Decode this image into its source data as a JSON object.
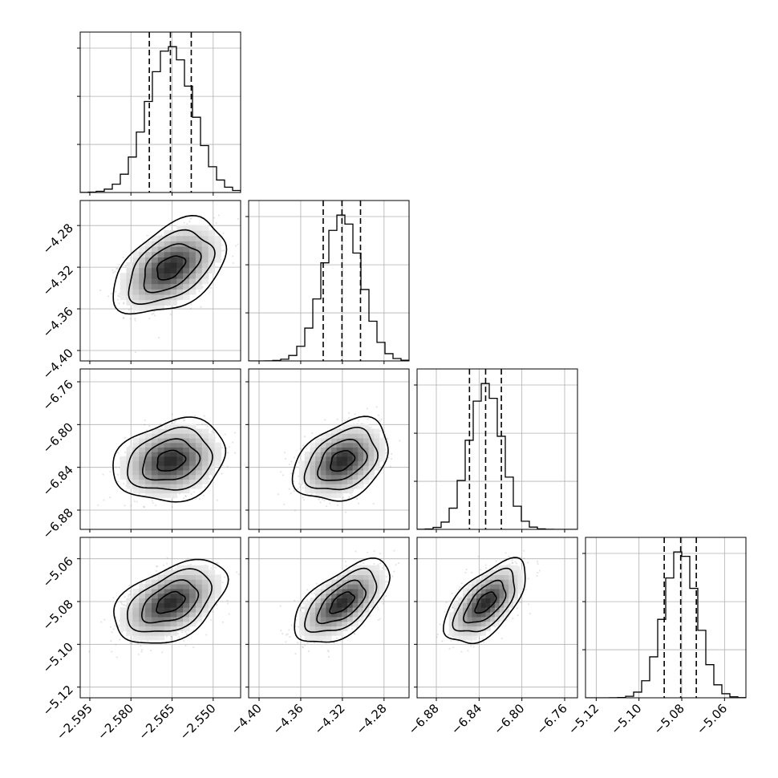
{
  "chart_data": {
    "type": "corner",
    "grid": true,
    "parameters": [
      {
        "mean": -2.5656,
        "sd": 0.0082,
        "range": [
          -2.5985,
          -2.54
        ],
        "ticks": [
          -2.595,
          -2.58,
          -2.565,
          -2.55
        ],
        "tick_labels": [
          "−2.595",
          "−2.580",
          "−2.565",
          "−2.550"
        ],
        "quantiles": [
          -2.5733,
          -2.5656,
          -2.558
        ]
      },
      {
        "mean": -4.3204,
        "sd": 0.0183,
        "range": [
          -4.41,
          -4.256
        ],
        "ticks": [
          -4.4,
          -4.36,
          -4.32,
          -4.28
        ],
        "tick_labels": [
          "−4.40",
          "−4.36",
          "−4.32",
          "−4.28"
        ],
        "quantiles": [
          -4.3384,
          -4.3204,
          -4.3026
        ]
      },
      {
        "mean": -6.8339,
        "sd": 0.0153,
        "range": [
          -6.898,
          -6.748
        ],
        "ticks": [
          -6.88,
          -6.84,
          -6.8,
          -6.76
        ],
        "tick_labels": [
          "−6.88",
          "−6.84",
          "−6.80",
          "−6.76"
        ],
        "quantiles": [
          -6.849,
          -6.8339,
          -6.8192
        ]
      },
      {
        "mean": -5.0805,
        "sd": 0.0078,
        "range": [
          -5.125,
          -5.05
        ],
        "ticks": [
          -5.12,
          -5.1,
          -5.08,
          -5.06
        ],
        "tick_labels": [
          "−5.12",
          "−5.10",
          "−5.08",
          "−5.06"
        ],
        "quantiles": [
          -5.0882,
          -5.0805,
          -5.0732
        ]
      }
    ],
    "correlations": [
      [
        0,
        1,
        0.45
      ],
      [
        0,
        2,
        0.2
      ],
      [
        0,
        3,
        0.45
      ],
      [
        1,
        2,
        0.35
      ],
      [
        1,
        3,
        0.6
      ],
      [
        2,
        3,
        0.6
      ]
    ],
    "contour_levels_sigma": [
      0.5,
      1.0,
      1.5,
      2.0
    ]
  }
}
